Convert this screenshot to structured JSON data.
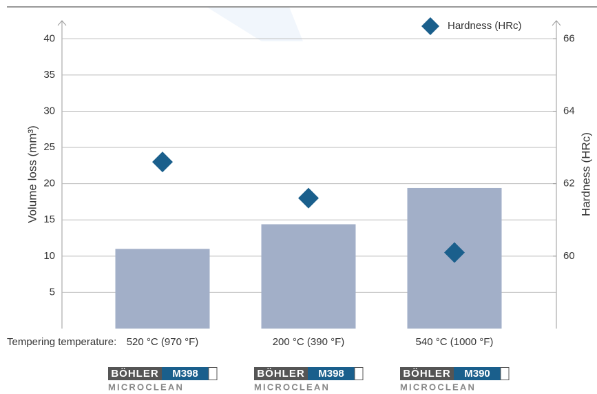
{
  "chart_data": {
    "type": "bar",
    "categories": [
      "520 °C (970 °F)",
      "200 °C (390 °F)",
      "540 °C (1000 °F)"
    ],
    "values": [
      11,
      14.4,
      19.4
    ],
    "color": "#a2afc8",
    "ylabel": "Volume loss (mm³)",
    "y2label": "Hardness (HRc)",
    "xlabel": "Tempering temperature:",
    "ylim": [
      0,
      42.5
    ],
    "yticks": [
      5,
      10,
      15,
      20,
      25,
      30,
      35,
      40
    ],
    "y2lim": [
      58,
      66.5
    ],
    "y2ticks": [
      60,
      62,
      64,
      66
    ],
    "grid": true,
    "legend": "top-right",
    "series": [
      {
        "name": "Hardness (HRc)",
        "type": "scatter",
        "axis": "y2",
        "color": "#1a5f8c",
        "values": [
          62.6,
          61.6,
          60.1
        ]
      }
    ],
    "brands": [
      {
        "maker": "BÖHLER",
        "grade": "M398",
        "line": "MICROCLEAN"
      },
      {
        "maker": "BÖHLER",
        "grade": "M398",
        "line": "MICROCLEAN"
      },
      {
        "maker": "BÖHLER",
        "grade": "M390",
        "line": "MICROCLEAN"
      }
    ]
  }
}
